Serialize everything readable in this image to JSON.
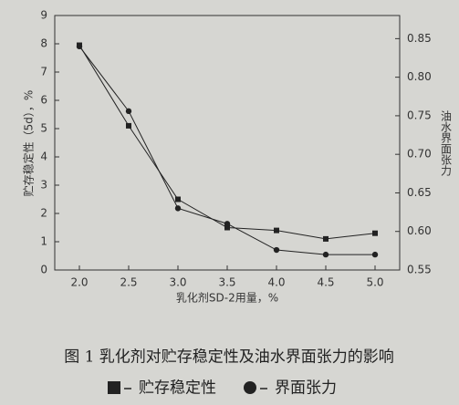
{
  "chart_data": {
    "type": "line",
    "caption": "图 1 乳化剂对贮存稳定性及油水界面张力的影响",
    "x_label": "乳化剂SD-2用量，%",
    "y_label": "贮存稳定性（5d），%",
    "y2_label": "油水界面张力",
    "x": [
      2.0,
      2.5,
      3.0,
      3.5,
      4.0,
      4.5,
      5.0
    ],
    "xlim": [
      1.75,
      5.25
    ],
    "xticks": [
      {
        "value": 2.0,
        "label": "2.0"
      },
      {
        "value": 2.5,
        "label": "2.5"
      },
      {
        "value": 3.0,
        "label": "3.0"
      },
      {
        "value": 3.5,
        "label": "3.5"
      },
      {
        "value": 4.0,
        "label": "4.0"
      },
      {
        "value": 4.5,
        "label": "4.5"
      },
      {
        "value": 5.0,
        "label": "5.0"
      }
    ],
    "ylim": [
      0,
      9
    ],
    "yticks": [
      0,
      1,
      2,
      3,
      4,
      5,
      6,
      7,
      8,
      9
    ],
    "y2lim": [
      0.55,
      0.88
    ],
    "y2ticks": [
      0.55,
      {
        "value": 0.6,
        "label": "0.60"
      },
      0.65,
      {
        "value": 0.7,
        "label": "0.70"
      },
      0.75,
      {
        "value": 0.8,
        "label": "0.80"
      },
      0.85
    ],
    "series": [
      {
        "name": "贮存稳定性",
        "color": "#222222",
        "marker": "square",
        "values": [
          7.95,
          5.1,
          2.5,
          1.5,
          1.4,
          1.1,
          1.3
        ]
      },
      {
        "name": "界面张力",
        "color": "#222222",
        "marker": "circle",
        "axis": "y2",
        "values": [
          0.84,
          0.756,
          0.63,
          0.61,
          0.576,
          0.57,
          0.57
        ]
      }
    ]
  }
}
